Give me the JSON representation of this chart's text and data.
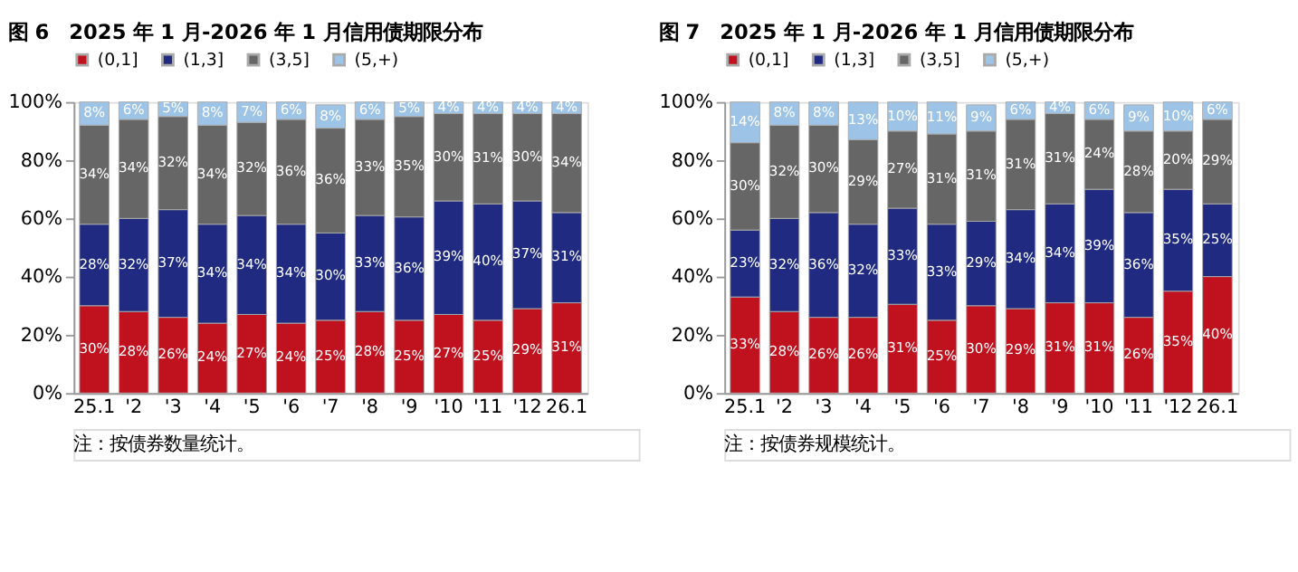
{
  "chart_data": [
    {
      "type": "bar",
      "title": "图 6　2025 年 1 月-2026 年 1 月信用债期限分布",
      "stacked": true,
      "legend": "top",
      "grid": false,
      "categories": [
        "25.1",
        "'2",
        "'3",
        "'4",
        "'5",
        "'6",
        "'7",
        "'8",
        "'9",
        "'10",
        "'11",
        "'12",
        "26.1"
      ],
      "ylim": [
        0,
        100
      ],
      "yticks": [
        {
          "value": 0,
          "label": "0%"
        },
        {
          "value": 20,
          "label": "20%"
        },
        {
          "value": 40,
          "label": "40%"
        },
        {
          "value": 60,
          "label": "60%"
        },
        {
          "value": 80,
          "label": "80%"
        },
        {
          "value": 100,
          "label": "100%"
        }
      ],
      "series": [
        {
          "name": "(0,1]",
          "color": "#c0111f",
          "values": [
            30,
            28,
            26,
            24,
            27,
            24,
            25,
            28,
            25,
            27,
            25,
            29,
            31
          ],
          "value_labels": [
            "30%",
            "28%",
            "26%",
            "24%",
            "27%",
            "24%",
            "25%",
            "28%",
            "25%",
            "27%",
            "25%",
            "29%",
            "31%"
          ]
        },
        {
          "name": "(1,3]",
          "color": "#1f2a80",
          "values": [
            28,
            32,
            37,
            34,
            34,
            34,
            30,
            33,
            35.5,
            39,
            40,
            37,
            31
          ],
          "value_labels": [
            "28%",
            "32%",
            "37%",
            "34%",
            "34%",
            "34%",
            "30%",
            "33%",
            "36%",
            "39%",
            "40%",
            "37%",
            "31%"
          ]
        },
        {
          "name": "(3,5]",
          "color": "#666666",
          "values": [
            34,
            34,
            32,
            34,
            32,
            36,
            36,
            33,
            34.5,
            30,
            31,
            30,
            34
          ],
          "value_labels": [
            "34%",
            "34%",
            "32%",
            "34%",
            "32%",
            "36%",
            "36%",
            "33%",
            "35%",
            "30%",
            "31%",
            "30%",
            "34%"
          ]
        },
        {
          "name": "(5,+)",
          "color": "#9dc3e6",
          "values": [
            8,
            6,
            5,
            8,
            7,
            6,
            8,
            6,
            5,
            4,
            4,
            4,
            4
          ],
          "value_labels": [
            "8%",
            "6%",
            "5%",
            "8%",
            "7%",
            "6%",
            "8%",
            "6%",
            "5%",
            "4%",
            "4%",
            "4%",
            "4%"
          ]
        }
      ],
      "annotations": [
        "注：按债券数量统计。"
      ]
    },
    {
      "type": "bar",
      "title": "图 7　2025 年 1 月-2026 年 1 月信用债期限分布",
      "stacked": true,
      "legend": "top",
      "grid": false,
      "categories": [
        "25.1",
        "'2",
        "'3",
        "'4",
        "'5",
        "'6",
        "'7",
        "'8",
        "'9",
        "'10",
        "'11",
        "'12",
        "26.1"
      ],
      "ylim": [
        0,
        100
      ],
      "yticks": [
        {
          "value": 0,
          "label": "0%"
        },
        {
          "value": 20,
          "label": "20%"
        },
        {
          "value": 40,
          "label": "40%"
        },
        {
          "value": 60,
          "label": "60%"
        },
        {
          "value": 80,
          "label": "80%"
        },
        {
          "value": 100,
          "label": "100%"
        }
      ],
      "series": [
        {
          "name": "(0,1]",
          "color": "#c0111f",
          "values": [
            33,
            28,
            26,
            26,
            30.5,
            25,
            30,
            29,
            31,
            31,
            26,
            35,
            40
          ],
          "value_labels": [
            "33%",
            "28%",
            "26%",
            "26%",
            "31%",
            "25%",
            "30%",
            "29%",
            "31%",
            "31%",
            "26%",
            "35%",
            "40%"
          ]
        },
        {
          "name": "(1,3]",
          "color": "#1f2a80",
          "values": [
            23,
            32,
            36,
            32,
            33,
            33,
            29,
            34,
            34,
            39,
            36,
            35,
            25
          ],
          "value_labels": [
            "23%",
            "32%",
            "36%",
            "32%",
            "33%",
            "33%",
            "29%",
            "34%",
            "34%",
            "39%",
            "36%",
            "35%",
            "25%"
          ]
        },
        {
          "name": "(3,5]",
          "color": "#666666",
          "values": [
            30,
            32,
            30,
            29,
            26.5,
            31,
            31,
            31,
            31,
            24,
            28,
            20,
            29
          ],
          "value_labels": [
            "30%",
            "32%",
            "30%",
            "29%",
            "27%",
            "31%",
            "31%",
            "31%",
            "31%",
            "24%",
            "28%",
            "20%",
            "29%"
          ]
        },
        {
          "name": "(5,+)",
          "color": "#9dc3e6",
          "values": [
            14,
            8,
            8,
            13,
            10,
            11,
            9,
            6,
            4,
            6,
            9,
            10,
            6
          ],
          "value_labels": [
            "14%",
            "8%",
            "8%",
            "13%",
            "10%",
            "11%",
            "9%",
            "6%",
            "4%",
            "6%",
            "9%",
            "10%",
            "6%"
          ]
        }
      ],
      "annotations": [
        "注：按债券规模统计。"
      ]
    }
  ]
}
